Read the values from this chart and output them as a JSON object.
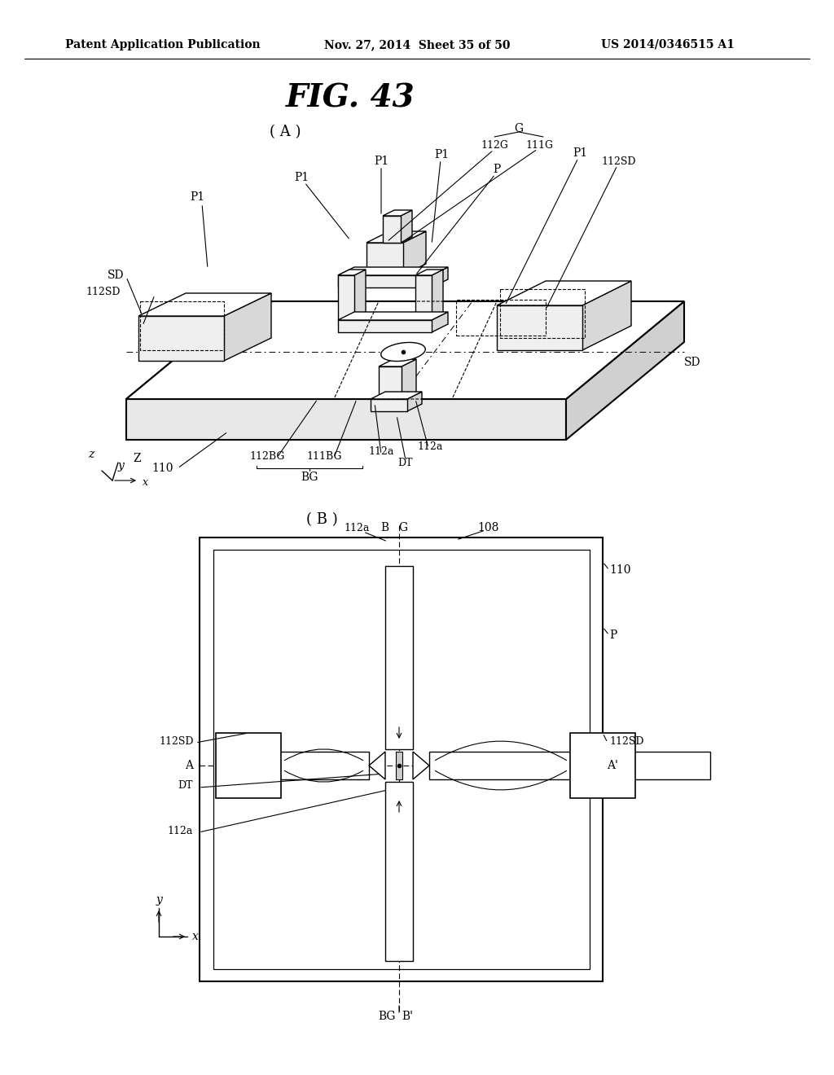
{
  "title": "FIG. 43",
  "header_left": "Patent Application Publication",
  "header_mid": "Nov. 27, 2014  Sheet 35 of 50",
  "header_right": "US 2014/0346515 A1",
  "bg_color": "#ffffff",
  "text_color": "#000000"
}
